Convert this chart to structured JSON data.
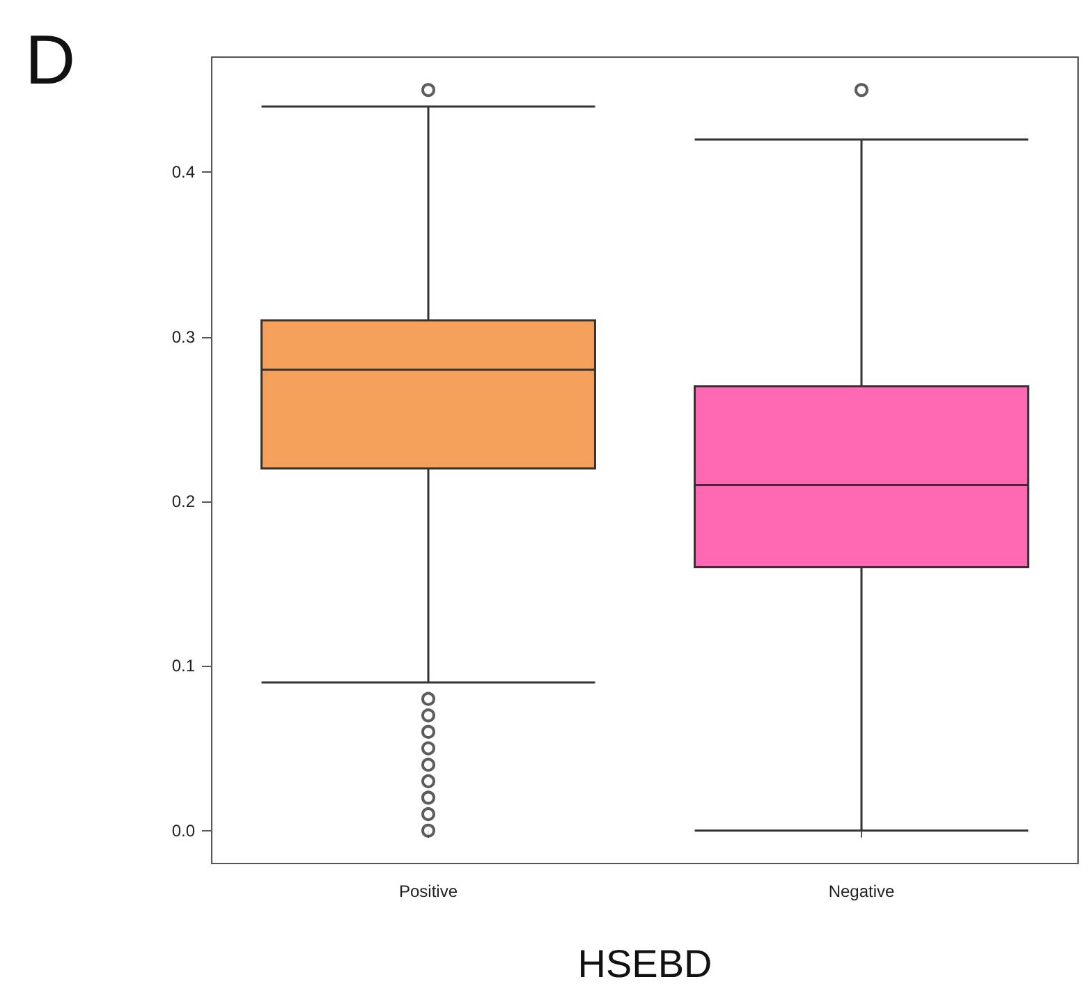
{
  "chart_data": {
    "type": "box",
    "xlabel": "HSEBD",
    "annotations": [
      "D"
    ],
    "categories": [
      "Positive",
      "Negative"
    ],
    "colors": [
      "#f4a05a",
      "#ff69b4"
    ],
    "boxes": [
      {
        "low": 0.09,
        "q1": 0.22,
        "median": 0.28,
        "q3": 0.31,
        "high": 0.44,
        "outliers": [
          0.45,
          0.08,
          0.07,
          0.06,
          0.05,
          0.04,
          0.03,
          0.02,
          0.01,
          0.0
        ]
      },
      {
        "low": 0.0,
        "q1": 0.16,
        "median": 0.21,
        "q3": 0.27,
        "high": 0.42,
        "outliers": [
          0.45
        ]
      }
    ],
    "ylim": [
      -0.02,
      0.47
    ],
    "yticks": [
      {
        "value": 0,
        "label": "0.0"
      },
      {
        "value": 0.1,
        "label": "0.1"
      },
      {
        "value": 0.2,
        "label": "0.2"
      },
      {
        "value": 0.3,
        "label": "0.3"
      },
      {
        "value": 0.4,
        "label": "0.4"
      }
    ],
    "grid": false,
    "marker": "circle"
  }
}
